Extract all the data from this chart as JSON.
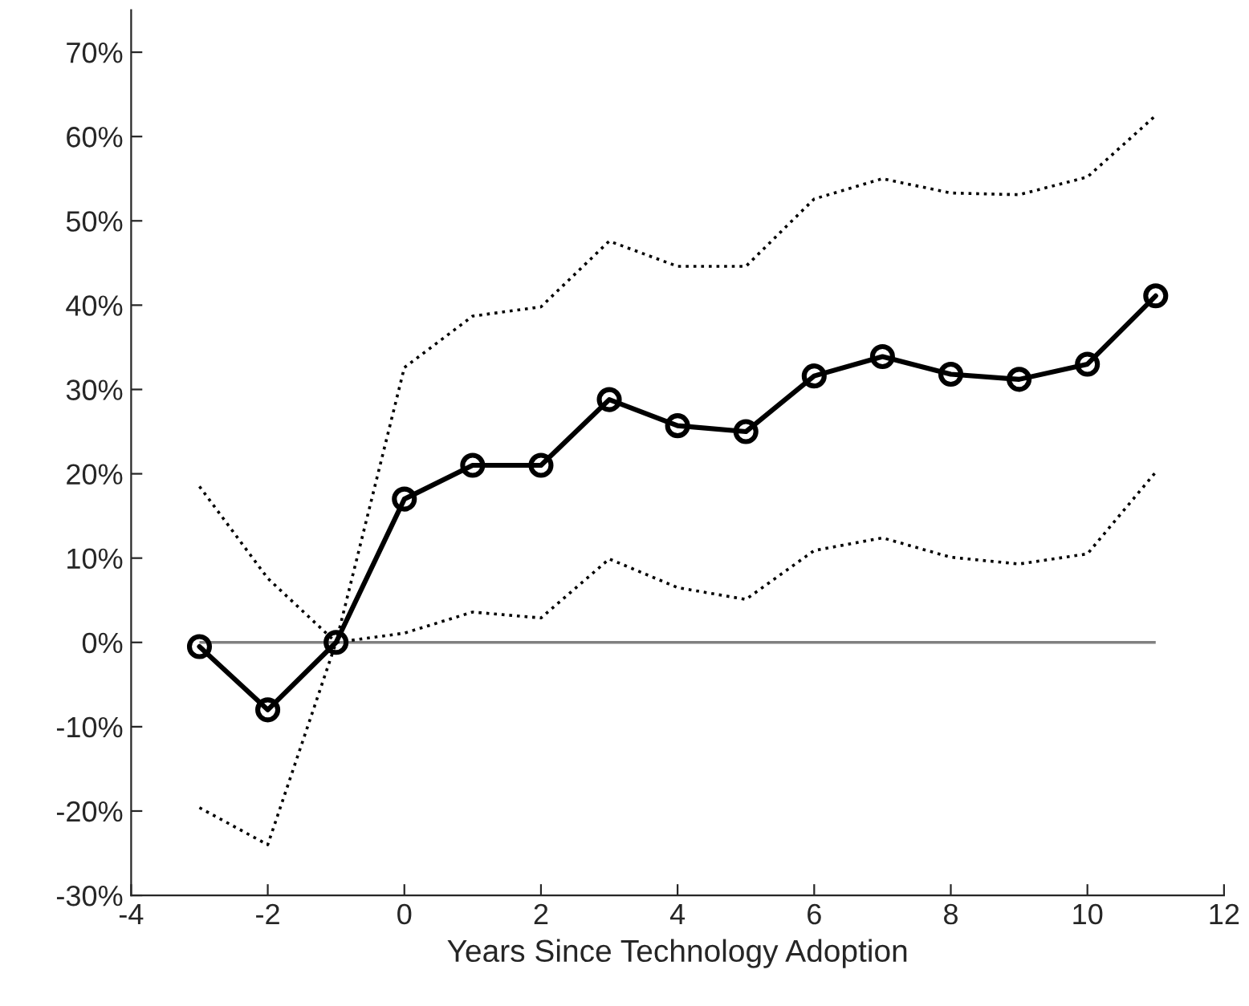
{
  "chart_data": {
    "type": "line",
    "xlabel": "Years Since Technology Adoption",
    "x": [
      -3,
      -2,
      -1,
      0,
      1,
      2,
      3,
      4,
      5,
      6,
      7,
      8,
      9,
      10,
      11
    ],
    "series": [
      {
        "color": "#000000",
        "marker": "circle",
        "line_style": "solid",
        "values": [
          -0.5,
          -8,
          0,
          17,
          21,
          21,
          28.8,
          25.7,
          25,
          31.6,
          33.9,
          31.8,
          31.2,
          33,
          41.1
        ]
      },
      {
        "color": "#000000",
        "marker": "none",
        "line_style": "dotted",
        "values": [
          18.5,
          7.6,
          0,
          32.6,
          38.7,
          39.8,
          47.6,
          44.6,
          44.6,
          52.6,
          55,
          53.3,
          53.1,
          55.2,
          62.5
        ]
      },
      {
        "color": "#000000",
        "marker": "none",
        "line_style": "dotted",
        "values": [
          -19.6,
          -24,
          0,
          1.1,
          3.6,
          2.9,
          9.9,
          6.5,
          5.1,
          10.9,
          12.4,
          10.1,
          9.3,
          10.5,
          20.2
        ]
      }
    ],
    "ref_lines": [
      {
        "axis": "y",
        "value": 0,
        "color": "#808080",
        "line_style": "solid"
      }
    ],
    "xlim": [
      -4,
      12
    ],
    "xticks": [
      -4,
      -2,
      0,
      2,
      4,
      6,
      8,
      10,
      12
    ],
    "ylim": [
      -30,
      75
    ],
    "yticks": [
      {
        "value": -30,
        "label": "-30%"
      },
      {
        "value": -20,
        "label": "-20%"
      },
      {
        "value": -10,
        "label": "-10%"
      },
      {
        "value": 0,
        "label": "0%"
      },
      {
        "value": 10,
        "label": "10%"
      },
      {
        "value": 20,
        "label": "20%"
      },
      {
        "value": 30,
        "label": "30%"
      },
      {
        "value": 40,
        "label": "40%"
      },
      {
        "value": 50,
        "label": "50%"
      },
      {
        "value": 60,
        "label": "60%"
      },
      {
        "value": 70,
        "label": "70%"
      }
    ],
    "tick_labels": true
  }
}
